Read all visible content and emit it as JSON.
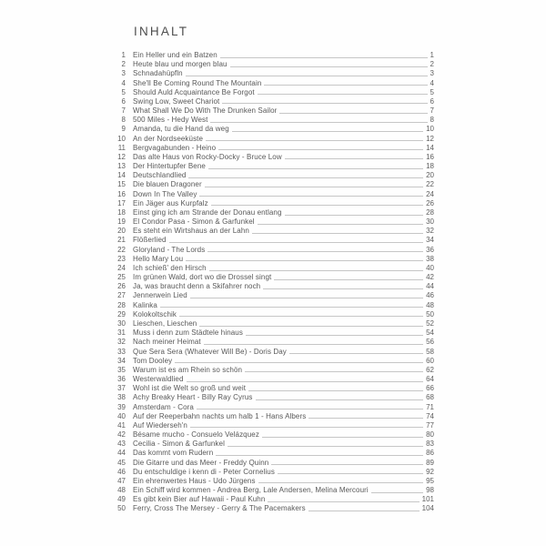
{
  "page": {
    "title": "INHALT",
    "entries": [
      {
        "num": "1",
        "title": "Ein Heller und ein Batzen",
        "page": "1"
      },
      {
        "num": "2",
        "title": "Heute blau und morgen blau",
        "page": "2"
      },
      {
        "num": "3",
        "title": "Schnadahüpfln",
        "page": "3"
      },
      {
        "num": "4",
        "title": "She'll Be Coming Round The Mountain",
        "page": "4"
      },
      {
        "num": "5",
        "title": "Should Auld Acquaintance Be Forgot",
        "page": "5"
      },
      {
        "num": "6",
        "title": "Swing Low, Sweet Chariot",
        "page": "6"
      },
      {
        "num": "7",
        "title": "What Shall We Do With The Drunken Sailor",
        "page": "7"
      },
      {
        "num": "8",
        "title": "500 Miles - Hedy West",
        "page": "8"
      },
      {
        "num": "9",
        "title": "Amanda, tu die Hand da weg",
        "page": "10"
      },
      {
        "num": "10",
        "title": "An der Nordseeküste",
        "page": "12"
      },
      {
        "num": "11",
        "title": "Bergvagabunden - Heino",
        "page": "14"
      },
      {
        "num": "12",
        "title": "Das alte Haus von Rocky-Docky - Bruce Low",
        "page": "16"
      },
      {
        "num": "13",
        "title": "Der Hintertupfer Bene",
        "page": "18"
      },
      {
        "num": "14",
        "title": "Deutschlandlied",
        "page": "20"
      },
      {
        "num": "15",
        "title": "Die blauen Dragoner",
        "page": "22"
      },
      {
        "num": "16",
        "title": "Down In The Valley",
        "page": "24"
      },
      {
        "num": "17",
        "title": "Ein Jäger aus Kurpfalz",
        "page": "26"
      },
      {
        "num": "18",
        "title": "Einst ging ich am Strande der Donau entlang",
        "page": "28"
      },
      {
        "num": "19",
        "title": "El Condor Pasa - Simon & Garfunkel",
        "page": "30"
      },
      {
        "num": "20",
        "title": "Es steht ein Wirtshaus an der Lahn",
        "page": "32"
      },
      {
        "num": "21",
        "title": "Flößerlied",
        "page": "34"
      },
      {
        "num": "22",
        "title": "Gloryland - The Lords",
        "page": "36"
      },
      {
        "num": "23",
        "title": "Hello Mary Lou",
        "page": "38"
      },
      {
        "num": "24",
        "title": "Ich schieß' den Hirsch",
        "page": "40"
      },
      {
        "num": "25",
        "title": "Im grünen Wald, dort wo die Drossel singt",
        "page": "42"
      },
      {
        "num": "26",
        "title": "Ja, was braucht denn a Skifahrer noch",
        "page": "44"
      },
      {
        "num": "27",
        "title": "Jennerwein Lied",
        "page": "46"
      },
      {
        "num": "28",
        "title": "Kalinka",
        "page": "48"
      },
      {
        "num": "29",
        "title": "Kolokoltschik",
        "page": "50"
      },
      {
        "num": "30",
        "title": "Lieschen, Lieschen",
        "page": "52"
      },
      {
        "num": "31",
        "title": "Muss i denn zum Städtele hinaus",
        "page": "54"
      },
      {
        "num": "32",
        "title": "Nach meiner Heimat",
        "page": "56"
      },
      {
        "num": "33",
        "title": "Que Sera Sera (Whatever Will Be) - Doris Day",
        "page": "58"
      },
      {
        "num": "34",
        "title": "Tom Dooley",
        "page": "60"
      },
      {
        "num": "35",
        "title": "Warum ist es am Rhein so schön",
        "page": "62"
      },
      {
        "num": "36",
        "title": "Westerwaldlied",
        "page": "64"
      },
      {
        "num": "37",
        "title": "Wohl ist die Welt so groß und weit",
        "page": "66"
      },
      {
        "num": "38",
        "title": "Achy Breaky Heart - Billy Ray Cyrus",
        "page": "68"
      },
      {
        "num": "39",
        "title": "Amsterdam - Cora",
        "page": "71"
      },
      {
        "num": "40",
        "title": "Auf der Reeperbahn nachts um halb 1 - Hans Albers",
        "page": "74"
      },
      {
        "num": "41",
        "title": "Auf Wiederseh'n",
        "page": "77"
      },
      {
        "num": "42",
        "title": "Bésame mucho - Consuelo Velázquez",
        "page": "80"
      },
      {
        "num": "43",
        "title": "Cecilia - Simon & Garfunkel",
        "page": "83"
      },
      {
        "num": "44",
        "title": "Das kommt vom Rudern",
        "page": "86"
      },
      {
        "num": "45",
        "title": "Die Gitarre und das Meer - Freddy Quinn",
        "page": "89"
      },
      {
        "num": "46",
        "title": "Du entschuldige i kenn di - Peter Cornelius",
        "page": "92"
      },
      {
        "num": "47",
        "title": "Ein ehrenwertes Haus - Udo Jürgens",
        "page": "95"
      },
      {
        "num": "48",
        "title": "Ein Schiff wird kommen - Andrea Berg, Lale Andersen, Melina Mercouri",
        "page": "98"
      },
      {
        "num": "49",
        "title": "Es gibt kein Bier auf Hawaii - Paul Kuhn",
        "page": "101"
      },
      {
        "num": "50",
        "title": "Ferry, Cross The Mersey - Gerry & The Pacemakers",
        "page": "104"
      }
    ]
  }
}
